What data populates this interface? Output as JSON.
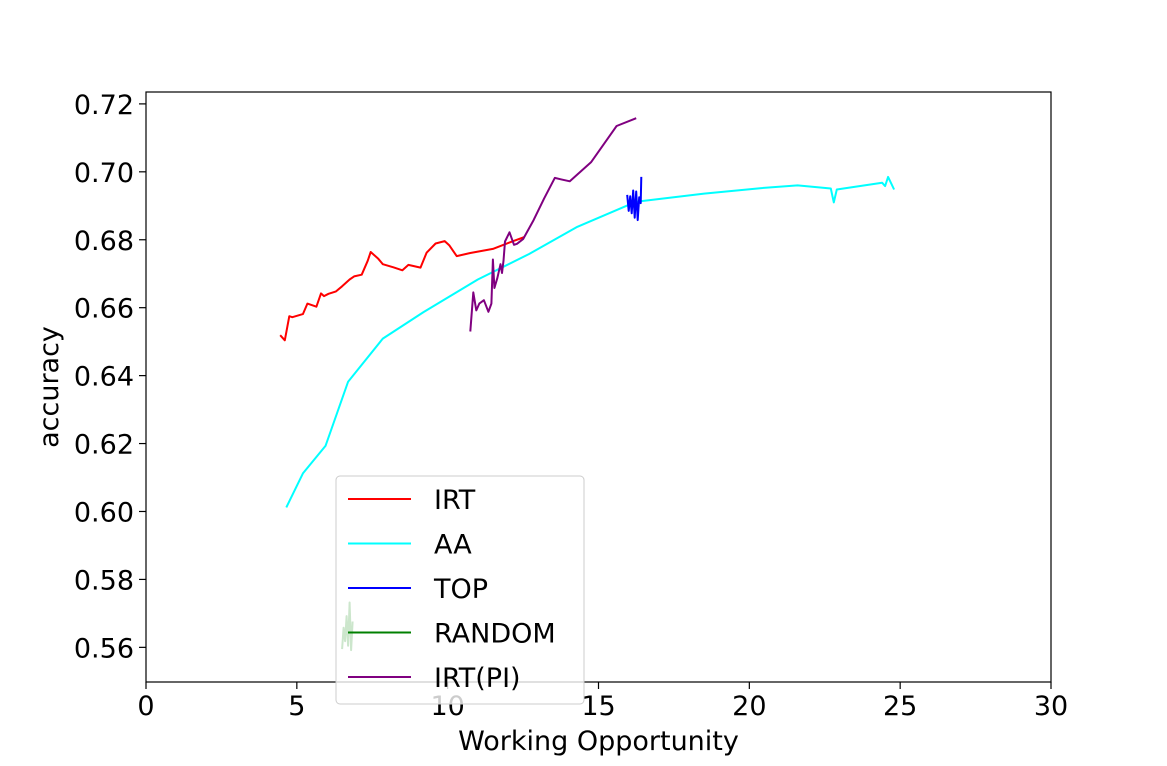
{
  "chart_data": {
    "type": "line",
    "title": "",
    "xlabel": "Working Opportunity",
    "ylabel": "accuracy",
    "xlim": [
      0,
      30
    ],
    "ylim": [
      0.5498,
      0.7235
    ],
    "xticks": [
      0,
      5,
      10,
      15,
      20,
      25,
      30
    ],
    "yticks": [
      0.56,
      0.58,
      0.6,
      0.62,
      0.64,
      0.66,
      0.68,
      0.7,
      0.72
    ],
    "grid": false,
    "legend_position": "lower-left",
    "series": [
      {
        "name": "IRT",
        "color": "#ff0000",
        "x": [
          4.45,
          4.6,
          4.75,
          4.85,
          5.2,
          5.35,
          5.65,
          5.8,
          5.9,
          6.05,
          6.3,
          6.5,
          6.75,
          6.9,
          7.15,
          7.35,
          7.45,
          7.7,
          7.85,
          8.2,
          8.5,
          8.7,
          9.1,
          9.3,
          9.6,
          9.9,
          10.05,
          10.3,
          10.75,
          11.5,
          12.2,
          12.55
        ],
        "y": [
          0.6519,
          0.6504,
          0.6575,
          0.6572,
          0.6581,
          0.6612,
          0.6603,
          0.6642,
          0.6634,
          0.6641,
          0.6648,
          0.6663,
          0.6683,
          0.6692,
          0.6697,
          0.6738,
          0.6764,
          0.6744,
          0.6728,
          0.6719,
          0.671,
          0.6726,
          0.6718,
          0.6762,
          0.6789,
          0.6796,
          0.6784,
          0.6752,
          0.6761,
          0.6773,
          0.6797,
          0.6808
        ]
      },
      {
        "name": "AA",
        "color": "#00ffff",
        "x": [
          4.65,
          5.2,
          5.95,
          6.7,
          7.85,
          9.2,
          11.0,
          12.7,
          14.3,
          16.25,
          18.5,
          20.4,
          21.6,
          22.7,
          22.8,
          22.9,
          24.4,
          24.5,
          24.6,
          24.8
        ],
        "y": [
          0.6012,
          0.6112,
          0.6193,
          0.6382,
          0.6509,
          0.6587,
          0.6683,
          0.6758,
          0.6838,
          0.6912,
          0.6936,
          0.6952,
          0.696,
          0.6951,
          0.691,
          0.6948,
          0.6968,
          0.6958,
          0.6985,
          0.6948
        ]
      },
      {
        "name": "TOP",
        "color": "#0000ff",
        "x": [
          15.95,
          16.0,
          16.05,
          16.1,
          16.15,
          16.2,
          16.25,
          16.3,
          16.35,
          16.4,
          16.42
        ],
        "y": [
          0.6932,
          0.6885,
          0.6928,
          0.6878,
          0.6945,
          0.6865,
          0.6942,
          0.6858,
          0.6925,
          0.6908,
          0.6985
        ]
      },
      {
        "name": "RANDOM",
        "color": "#008000",
        "x": [
          6.5,
          6.55,
          6.6,
          6.65,
          6.7,
          6.75,
          6.8,
          6.85
        ],
        "y": [
          0.5595,
          0.5658,
          0.5618,
          0.5692,
          0.5605,
          0.5732,
          0.5592,
          0.5676
        ]
      },
      {
        "name": "IRT(PI)",
        "color": "#800080",
        "x": [
          10.75,
          10.85,
          10.95,
          11.05,
          11.2,
          11.35,
          11.45,
          11.5,
          11.55,
          11.65,
          11.75,
          11.8,
          11.85,
          11.9,
          12.05,
          12.2,
          12.3,
          12.5,
          12.85,
          13.2,
          13.55,
          13.75,
          14.05,
          14.75,
          15.6,
          16.25
        ],
        "y": [
          0.653,
          0.6645,
          0.6592,
          0.6612,
          0.6622,
          0.6588,
          0.6612,
          0.6742,
          0.6658,
          0.6688,
          0.6728,
          0.6702,
          0.6738,
          0.6795,
          0.6822,
          0.6785,
          0.6788,
          0.6802,
          0.6858,
          0.6922,
          0.6982,
          0.6978,
          0.6972,
          0.7028,
          0.7135,
          0.7158
        ]
      }
    ]
  }
}
